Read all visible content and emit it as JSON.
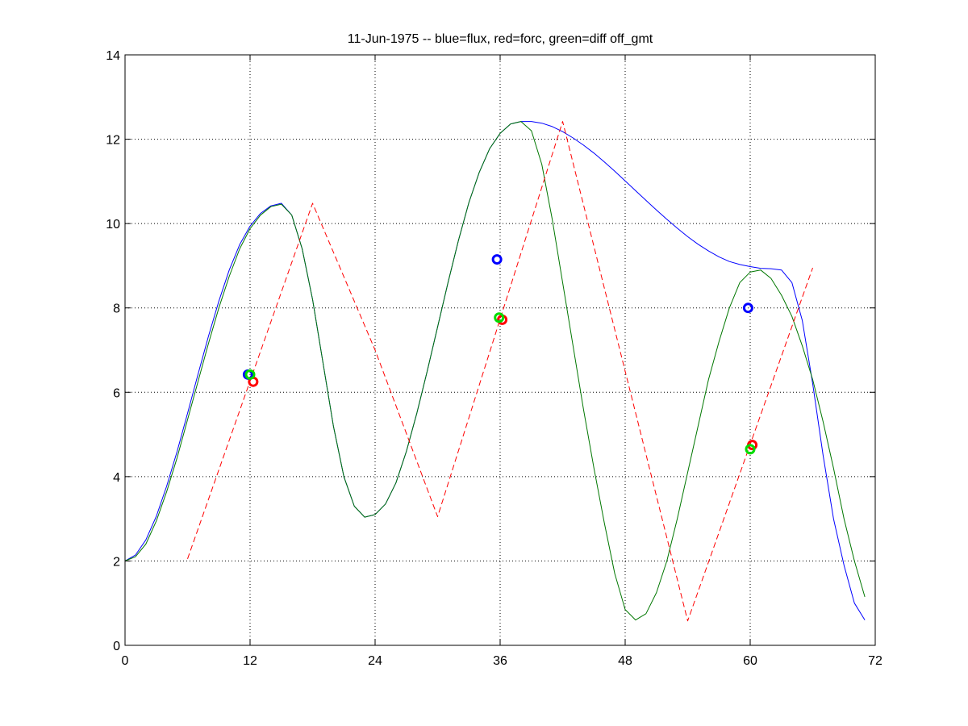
{
  "chart_data": {
    "type": "line",
    "title": "11-Jun-1975 -- blue=flux, red=forc, green=diff off_gmt",
    "xlabel": "",
    "ylabel": "",
    "xlim": [
      0,
      72
    ],
    "ylim": [
      0,
      14
    ],
    "xticks": [
      0,
      12,
      24,
      36,
      48,
      60,
      72
    ],
    "yticks": [
      0,
      2,
      4,
      6,
      8,
      10,
      12,
      14
    ],
    "grid": true,
    "legend": "none",
    "series": [
      {
        "color": "#0000ff",
        "style": "solid",
        "x": [
          0,
          1,
          2,
          3,
          4,
          5,
          6,
          7,
          8,
          9,
          10,
          11,
          12,
          13,
          14,
          15,
          16,
          17,
          18,
          19,
          20,
          21,
          22,
          23,
          24,
          25,
          26,
          27,
          28,
          29,
          30,
          31,
          32,
          33,
          34,
          35,
          36,
          37,
          38,
          39,
          40,
          41,
          42,
          43,
          44,
          45,
          46,
          47,
          48,
          49,
          50,
          51,
          52,
          53,
          54,
          55,
          56,
          57,
          58,
          59,
          60,
          61,
          62,
          63,
          64,
          65,
          66,
          67,
          68,
          69,
          70,
          71
        ],
        "y": [
          2.0,
          2.14,
          2.5,
          3.06,
          3.78,
          4.6,
          5.5,
          6.42,
          7.32,
          8.16,
          8.9,
          9.5,
          9.94,
          10.24,
          10.42,
          10.48,
          10.2,
          9.4,
          8.2,
          6.7,
          5.2,
          4.0,
          3.3,
          3.04,
          3.1,
          3.35,
          3.85,
          4.6,
          5.5,
          6.5,
          7.55,
          8.6,
          9.6,
          10.5,
          11.22,
          11.78,
          12.14,
          12.36,
          12.42,
          12.42,
          12.38,
          12.3,
          12.18,
          12.03,
          11.86,
          11.67,
          11.46,
          11.24,
          11.01,
          10.78,
          10.55,
          10.32,
          10.1,
          9.89,
          9.69,
          9.51,
          9.35,
          9.21,
          9.1,
          9.03,
          8.98,
          8.94,
          8.93,
          8.9,
          8.6,
          7.7,
          6.2,
          4.5,
          3.0,
          1.9,
          1.0,
          0.6
        ]
      },
      {
        "color": "#007700",
        "style": "solid",
        "x": [
          0,
          1,
          2,
          3,
          4,
          5,
          6,
          7,
          8,
          9,
          10,
          11,
          12,
          13,
          14,
          15,
          16,
          17,
          18,
          19,
          20,
          21,
          22,
          23,
          24,
          25,
          26,
          27,
          28,
          29,
          30,
          31,
          32,
          33,
          34,
          35,
          36,
          37,
          38,
          39,
          40,
          41,
          42,
          43,
          44,
          45,
          46,
          47,
          48,
          49,
          50,
          51,
          52,
          53,
          54,
          55,
          56,
          57,
          58,
          59,
          60,
          61,
          62,
          63,
          64,
          65,
          66,
          67,
          68,
          69,
          70,
          71
        ],
        "y": [
          2.0,
          2.1,
          2.4,
          2.95,
          3.65,
          4.45,
          5.35,
          6.25,
          7.15,
          8.0,
          8.75,
          9.4,
          9.88,
          10.2,
          10.4,
          10.46,
          10.2,
          9.4,
          8.2,
          6.7,
          5.2,
          4.0,
          3.3,
          3.04,
          3.1,
          3.35,
          3.85,
          4.6,
          5.5,
          6.5,
          7.55,
          8.6,
          9.6,
          10.5,
          11.22,
          11.78,
          12.14,
          12.36,
          12.42,
          12.2,
          11.4,
          10.1,
          8.6,
          7.1,
          5.6,
          4.2,
          2.9,
          1.7,
          0.85,
          0.6,
          0.75,
          1.25,
          2.0,
          3.0,
          4.1,
          5.2,
          6.3,
          7.2,
          8.0,
          8.6,
          8.85,
          8.9,
          8.7,
          8.3,
          7.8,
          7.1,
          6.3,
          5.3,
          4.2,
          3.0,
          2.0,
          1.15
        ]
      },
      {
        "color": "#ff0000",
        "style": "dashed",
        "x": [
          6,
          18,
          24,
          30,
          42,
          54,
          66
        ],
        "y": [
          2.05,
          10.48,
          7.0,
          3.05,
          12.42,
          0.58,
          8.95
        ]
      }
    ],
    "markers": [
      {
        "color": "#0000ff",
        "x": 11.8,
        "y": 6.42
      },
      {
        "color": "#ff0000",
        "x": 12.3,
        "y": 6.25
      },
      {
        "color": "#00dd00",
        "x": 12.0,
        "y": 6.42
      },
      {
        "color": "#0000ff",
        "x": 35.7,
        "y": 9.15
      },
      {
        "color": "#ff0000",
        "x": 36.2,
        "y": 7.72
      },
      {
        "color": "#00dd00",
        "x": 35.9,
        "y": 7.77
      },
      {
        "color": "#0000ff",
        "x": 59.8,
        "y": 8.0
      },
      {
        "color": "#ff0000",
        "x": 60.2,
        "y": 4.75
      },
      {
        "color": "#00dd00",
        "x": 60.0,
        "y": 4.65
      }
    ]
  }
}
